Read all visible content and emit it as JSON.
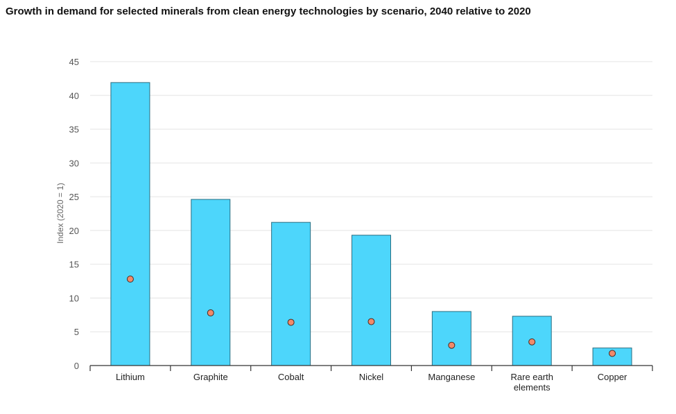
{
  "chart_data": {
    "type": "bar",
    "title": "Growth in demand for selected minerals from clean energy technologies by scenario, 2040 relative to 2020",
    "ylabel": "Index (2020 = 1)",
    "xlabel": "",
    "ylim": [
      0,
      45
    ],
    "yticks": [
      0,
      5,
      10,
      15,
      20,
      25,
      30,
      35,
      40,
      45
    ],
    "grid": true,
    "categories": [
      [
        "Lithium"
      ],
      [
        "Graphite"
      ],
      [
        "Cobalt"
      ],
      [
        "Nickel"
      ],
      [
        "Manganese"
      ],
      [
        "Rare earth",
        "elements"
      ],
      [
        "Copper"
      ]
    ],
    "series": [
      {
        "type": "bar",
        "values": [
          41.9,
          24.6,
          21.2,
          19.3,
          8.0,
          7.3,
          2.6
        ]
      },
      {
        "type": "scatter",
        "values": [
          12.8,
          7.8,
          6.4,
          6.5,
          3.0,
          3.5,
          1.8
        ]
      }
    ],
    "colors": {
      "bar": "#4dd6fb",
      "bar_stroke": "#2a6d80",
      "dot": "#f08a6a",
      "dot_stroke": "#4a2a22",
      "grid": "#e4e4e4",
      "axis": "#333333"
    }
  }
}
